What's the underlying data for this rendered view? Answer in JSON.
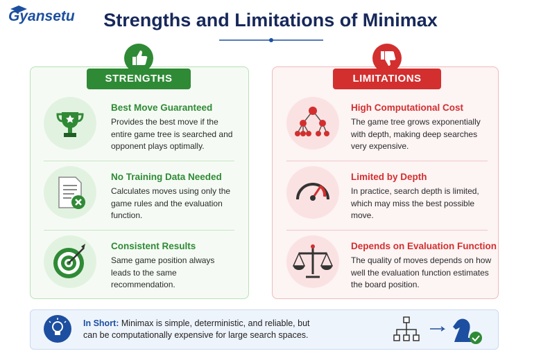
{
  "logo": "Gyansetu",
  "header": {
    "title": "Strengths and Limitations of Minimax"
  },
  "strengths": {
    "label": "STRENGTHS",
    "items": [
      {
        "title": "Best Move Guaranteed",
        "text": "Provides the best move if the entire game tree is searched and opponent plays optimally."
      },
      {
        "title": "No Training Data Needed",
        "text": "Calculates moves using only the game rules and the evaluation function."
      },
      {
        "title": "Consistent Results",
        "text": "Same game position always leads to the same recommendation."
      }
    ]
  },
  "limitations": {
    "label": "LIMITATIONS",
    "items": [
      {
        "title": "High Computational Cost",
        "text": "The game tree grows exponentially with depth, making deep searches very expensive."
      },
      {
        "title": "Limited by Depth",
        "text": "In practice, search depth is limited, which may miss the best possible move."
      },
      {
        "title": "Depends on Evaluation Function",
        "text": "The quality of moves depends on how well the evaluation function estimates the board position."
      }
    ]
  },
  "summary": {
    "label": "In Short:",
    "text": "Minimax is simple, deterministic, and reliable, but can be computationally expensive for large search spaces."
  }
}
